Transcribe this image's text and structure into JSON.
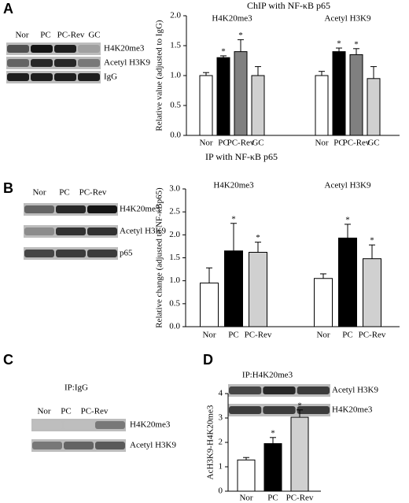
{
  "panel_labels": [
    "A",
    "B",
    "C",
    "D"
  ],
  "blots": [
    {
      "lanes": [
        "Nor",
        "PC",
        "PC-Rev",
        "GC"
      ],
      "bands": [
        "H4K20me3",
        "Acetyl H3K9",
        "IgG"
      ]
    },
    {
      "lanes": [
        "Nor",
        "PC",
        "PC-Rev"
      ],
      "bands": [
        "H4K20me3",
        "Acetyl H3K9",
        "p65"
      ]
    },
    {
      "title": "IP:IgG",
      "lanes": [
        "Nor",
        "PC",
        "PC-Rev"
      ],
      "bands": [
        "H4K20me3",
        "Acetyl H3K9"
      ]
    },
    {
      "title": "IP:H4K20me3",
      "bands": [
        "Acetyl H3K9",
        "H4K20me3"
      ]
    }
  ],
  "chart_data": [
    {
      "type": "bar",
      "title": "ChIP with NF-κB p65",
      "ylabel": "Relative value (adjusted to IgG)",
      "categories": [
        "Nor",
        "PC",
        "PC-Rev",
        "GC"
      ],
      "colors": [
        "#ffffff",
        "#000000",
        "#808080",
        "#d0d0d0"
      ],
      "series": [
        {
          "name": "H4K20me3",
          "values": [
            1.0,
            1.3,
            1.4,
            1.0
          ],
          "errors": [
            0.05,
            0.03,
            0.2,
            0.15
          ],
          "significance": [
            null,
            "*",
            "*",
            null
          ]
        },
        {
          "name": "Acetyl H3K9",
          "values": [
            1.0,
            1.4,
            1.35,
            0.95
          ],
          "errors": [
            0.07,
            0.06,
            0.1,
            0.2
          ],
          "significance": [
            null,
            "*",
            "*",
            null
          ]
        }
      ],
      "ylim": [
        0,
        2
      ],
      "yticks": [
        {
          "value": 0,
          "label": "0.0"
        },
        0.5,
        {
          "value": 1,
          "label": "1.0"
        },
        1.5,
        {
          "value": 2,
          "label": "2.0"
        }
      ]
    },
    {
      "type": "bar",
      "title": "IP with NF-κB p65",
      "ylabel": "Relative change (adjusted to NF-κBp65)",
      "categories": [
        "Nor",
        "PC",
        "PC-Rev"
      ],
      "colors": [
        "#ffffff",
        "#000000",
        "#d0d0d0"
      ],
      "series": [
        {
          "name": "H4K20me3",
          "values": [
            0.95,
            1.65,
            1.62
          ],
          "errors": [
            0.33,
            0.6,
            0.22
          ],
          "significance": [
            null,
            "*",
            "*"
          ]
        },
        {
          "name": "Acetyl H3K9",
          "values": [
            1.05,
            1.93,
            1.48
          ],
          "errors": [
            0.1,
            0.3,
            0.3
          ],
          "significance": [
            null,
            "*",
            "*"
          ]
        }
      ],
      "ylim": [
        0,
        3
      ],
      "yticks": [
        {
          "value": 0,
          "label": "0.0"
        },
        0.5,
        {
          "value": 1,
          "label": "1.0"
        },
        1.5,
        {
          "value": 2,
          "label": "2.0"
        },
        2.5,
        {
          "value": 3,
          "label": "3.0"
        }
      ]
    },
    {
      "type": "bar",
      "ylabel": "AcH3K9-H4K20me3",
      "categories": [
        "Nor",
        "PC",
        "PC-Rev"
      ],
      "colors": [
        "#ffffff",
        "#000000",
        "#d0d0d0"
      ],
      "values": [
        1.28,
        1.95,
        3.03
      ],
      "errors": [
        0.1,
        0.25,
        0.3
      ],
      "significance": [
        null,
        "*",
        "*"
      ],
      "ylim": [
        0,
        4
      ],
      "yticks": [
        0,
        1,
        2,
        3,
        4
      ]
    }
  ]
}
